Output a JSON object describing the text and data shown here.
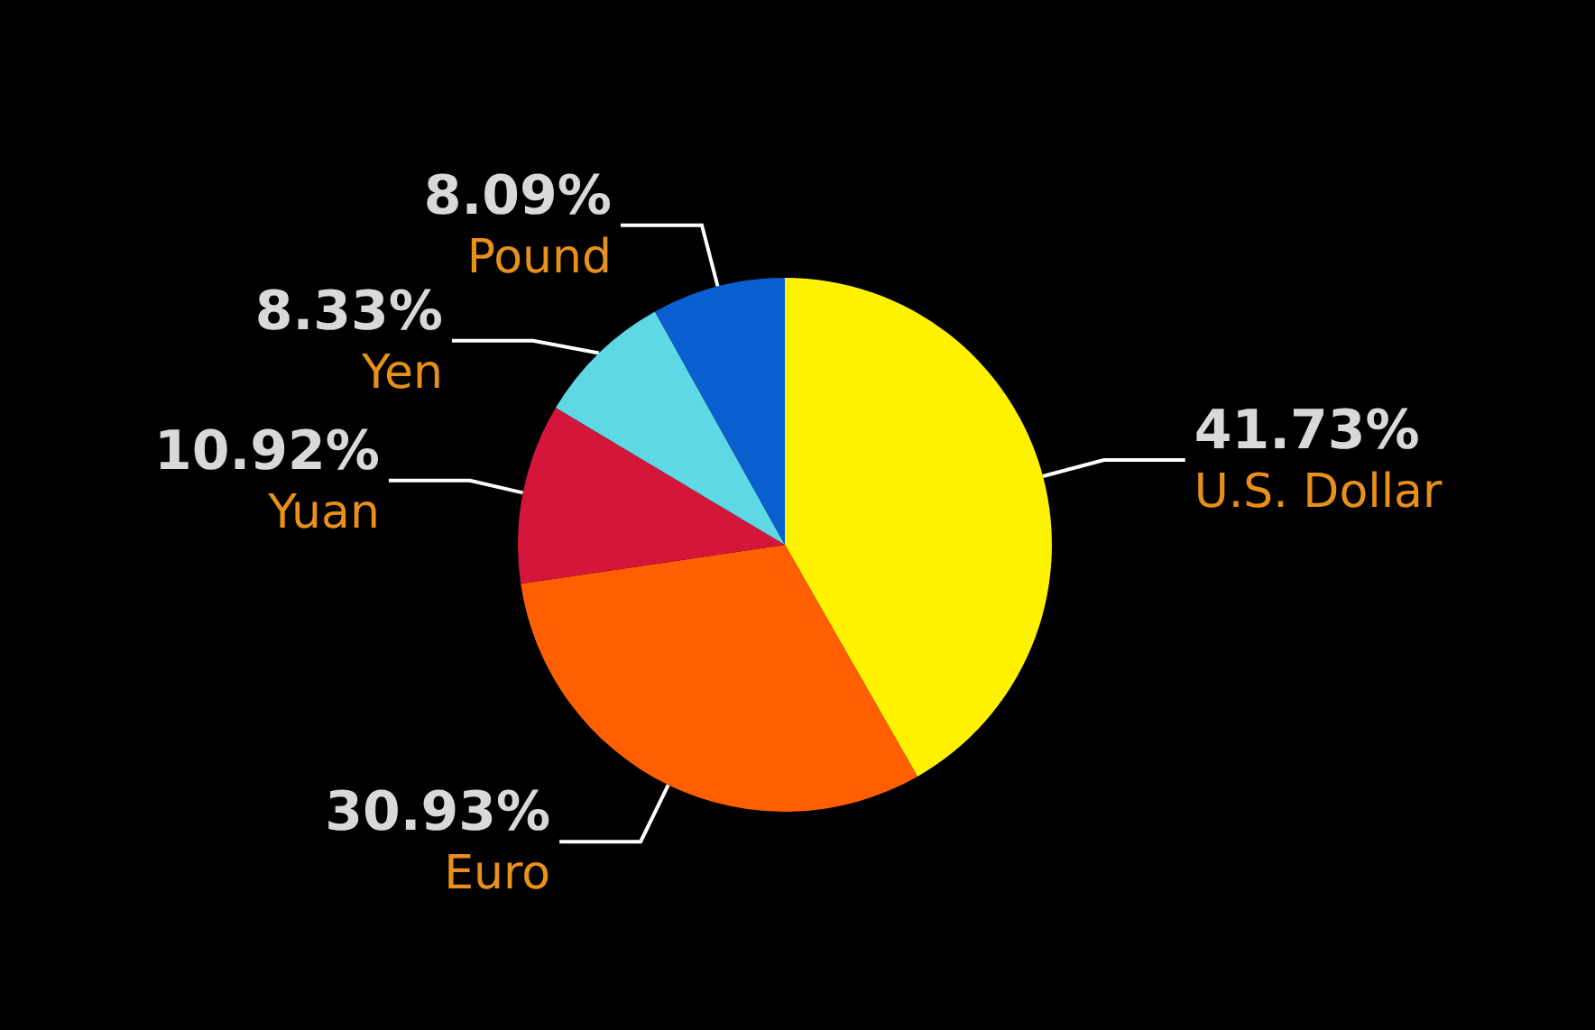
{
  "chart_data": {
    "type": "pie",
    "categories": [
      "U.S. Dollar",
      "Euro",
      "Yuan",
      "Yen",
      "Pound"
    ],
    "values": [
      41.73,
      30.93,
      10.92,
      8.33,
      8.09
    ],
    "colors": [
      "#fff200",
      "#ff5f00",
      "#d4163a",
      "#5fd8e6",
      "#0a5fd0"
    ],
    "value_labels": [
      "41.73%",
      "30.93%",
      "10.92%",
      "8.33%",
      "8.09%"
    ],
    "legend": false
  }
}
